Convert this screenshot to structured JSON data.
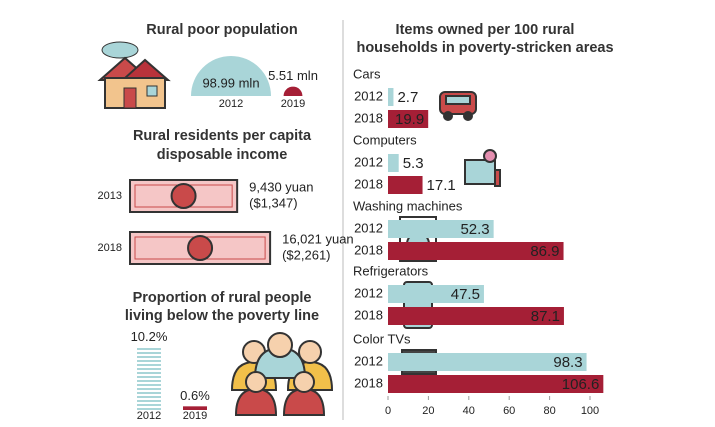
{
  "chart_data": [
    {
      "type": "semicircle",
      "title": "Rural poor population",
      "categories": [
        "2012",
        "2019"
      ],
      "values": [
        98.99,
        5.51
      ],
      "value_labels": [
        "98.99 mln",
        "5.51 mln"
      ],
      "colors": [
        "#a9d5d8",
        "#a51f36"
      ]
    },
    {
      "type": "bill",
      "title": [
        "Rural residents per capita",
        "disposable income"
      ],
      "categories": [
        "2013",
        "2018"
      ],
      "values": [
        9430,
        16021
      ],
      "value_labels": [
        "9,430 yuan",
        "16,021 yuan"
      ],
      "usd_values": [
        1347,
        2261
      ],
      "usd_labels": [
        "($1,347)",
        "($2,261)"
      ],
      "color": "#f5c6c6"
    },
    {
      "type": "bar",
      "title": [
        "Proportion of rural people",
        "living below the poverty line"
      ],
      "categories": [
        "2012",
        "2019"
      ],
      "values": [
        10.2,
        0.6
      ],
      "value_labels": [
        "10.2%",
        "0.6%"
      ],
      "colors": [
        "#a9d5d8",
        "#a51f36"
      ]
    },
    {
      "type": "hbar",
      "title": [
        "Items owned per 100 rural",
        "households in poverty-stricken areas"
      ],
      "categories": [
        "Cars",
        "Computers",
        "Washing machines",
        "Refrigerators",
        "Color TVs"
      ],
      "series": [
        {
          "name": "2012",
          "color": "#a9d5d8",
          "values": [
            2.7,
            5.3,
            52.3,
            47.5,
            98.3
          ]
        },
        {
          "name": "2018",
          "color": "#a51f36",
          "values": [
            19.9,
            17.1,
            86.9,
            87.1,
            106.6
          ]
        }
      ],
      "xlim": [
        0,
        100
      ],
      "xticks": [
        0,
        20,
        40,
        60,
        80,
        100
      ]
    }
  ]
}
